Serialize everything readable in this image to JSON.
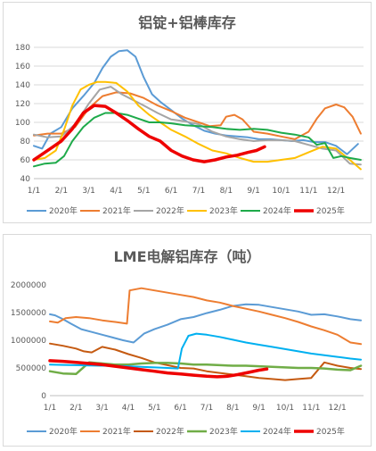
{
  "charts": [
    {
      "type": "line",
      "title": "铝锭+铝棒库存",
      "x_ticks": [
        "1/1",
        "2/1",
        "3/1",
        "4/1",
        "5/1",
        "6/1",
        "7/1",
        "8/1",
        "9/1",
        "10/1",
        "11/1",
        "12/1"
      ],
      "ylim": [
        40,
        180
      ],
      "y_ticks": [
        "40",
        "60",
        "80",
        "100",
        "120",
        "140",
        "160",
        "180"
      ],
      "grid": true,
      "legend_position": "bottom",
      "series": [
        {
          "name": "2020年",
          "color": "#5b9bd5",
          "width": 2,
          "x": [
            0,
            0.3,
            0.6,
            1,
            1.4,
            1.8,
            2.2,
            2.5,
            2.8,
            3.1,
            3.4,
            3.7,
            4,
            4.3,
            4.6,
            5,
            5.4,
            5.8,
            6.2,
            6.6,
            7,
            7.4,
            7.8,
            8.2,
            8.6,
            9,
            9.4,
            9.8,
            10.2,
            10.6,
            11,
            11.4,
            11.8
          ],
          "y": [
            75,
            72,
            88,
            95,
            115,
            128,
            142,
            158,
            170,
            176,
            177,
            170,
            148,
            130,
            122,
            113,
            104,
            97,
            91,
            88,
            86,
            85,
            84,
            82,
            82,
            81,
            80,
            81,
            79,
            79,
            75,
            66,
            77
          ]
        },
        {
          "name": "2021年",
          "color": "#ed7d31",
          "width": 2,
          "x": [
            0,
            0.5,
            1,
            1.5,
            2,
            2.5,
            3,
            3.5,
            4,
            4.5,
            5,
            5.5,
            6,
            6.4,
            6.8,
            7,
            7.3,
            7.6,
            8,
            8.5,
            9,
            9.5,
            10,
            10.3,
            10.6,
            11,
            11.3,
            11.6,
            11.9
          ],
          "y": [
            86,
            88,
            88,
            95,
            115,
            128,
            132,
            131,
            126,
            118,
            112,
            105,
            100,
            96,
            97,
            106,
            108,
            103,
            90,
            88,
            85,
            82,
            90,
            104,
            115,
            119,
            116,
            106,
            88
          ]
        },
        {
          "name": "2022年",
          "color": "#a5a5a5",
          "width": 2,
          "x": [
            0,
            0.5,
            1,
            1.5,
            2,
            2.4,
            2.8,
            3.2,
            3.6,
            4,
            4.5,
            5,
            5.5,
            6,
            6.5,
            7,
            7.5,
            8,
            8.5,
            9,
            9.5,
            10,
            10.5,
            11,
            11.5,
            11.9
          ],
          "y": [
            87,
            84,
            85,
            98,
            120,
            135,
            138,
            130,
            124,
            118,
            110,
            103,
            101,
            98,
            90,
            85,
            82,
            80,
            81,
            81,
            80,
            76,
            72,
            70,
            56,
            55
          ]
        },
        {
          "name": "2023年",
          "color": "#ffc000",
          "width": 2,
          "x": [
            0,
            0.4,
            0.8,
            1.1,
            1.4,
            1.7,
            2,
            2.3,
            2.6,
            3,
            3.4,
            3.8,
            4.2,
            4.6,
            5,
            5.5,
            6,
            6.5,
            7,
            7.5,
            8,
            8.5,
            9,
            9.5,
            10,
            10.5,
            11,
            11.5,
            11.9
          ],
          "y": [
            60,
            62,
            70,
            92,
            118,
            135,
            140,
            143,
            143,
            142,
            133,
            118,
            108,
            100,
            92,
            85,
            77,
            70,
            67,
            62,
            58,
            58,
            60,
            62,
            68,
            74,
            72,
            60,
            50
          ]
        },
        {
          "name": "2024年",
          "color": "#1eaa4a",
          "width": 2,
          "x": [
            0,
            0.4,
            0.8,
            1.1,
            1.4,
            1.8,
            2.2,
            2.6,
            3,
            3.4,
            3.8,
            4.2,
            4.6,
            5,
            5.5,
            6,
            6.5,
            7,
            7.5,
            8,
            8.5,
            9,
            9.5,
            10,
            10.3,
            10.6,
            10.9,
            11.2,
            11.5,
            11.9
          ],
          "y": [
            53,
            56,
            57,
            64,
            80,
            95,
            105,
            110,
            110,
            108,
            104,
            100,
            100,
            99,
            97,
            96,
            95,
            93,
            92,
            93,
            92,
            89,
            87,
            84,
            76,
            78,
            62,
            64,
            62,
            60
          ]
        },
        {
          "name": "2025年",
          "color": "#ee0000",
          "width": 3.5,
          "x": [
            0,
            0.3,
            0.6,
            1,
            1.4,
            1.8,
            2.2,
            2.6,
            3,
            3.4,
            3.8,
            4.2,
            4.6,
            5,
            5.4,
            5.8,
            6.2,
            6.6,
            7,
            7.4,
            7.8,
            8.1,
            8.4
          ],
          "y": [
            60,
            66,
            72,
            80,
            93,
            110,
            118,
            117,
            110,
            102,
            93,
            85,
            80,
            70,
            64,
            60,
            58,
            60,
            63,
            65,
            68,
            70,
            74
          ]
        }
      ]
    },
    {
      "type": "line",
      "title": "LME电解铝库存（吨）",
      "x_ticks": [
        "1/1",
        "2/1",
        "3/1",
        "4/1",
        "5/1",
        "6/1",
        "7/1",
        "8/1",
        "9/1",
        "10/1",
        "11/1",
        "12/1"
      ],
      "ylim": [
        0,
        2000000
      ],
      "y_ticks": [
        "0",
        "500000",
        "1000000",
        "1500000",
        "2000000"
      ],
      "grid": false,
      "legend_position": "bottom",
      "series": [
        {
          "name": "2020年",
          "color": "#5b9bd5",
          "width": 2,
          "x": [
            0,
            0.2,
            0.5,
            0.8,
            1.2,
            1.6,
            2,
            2.4,
            2.8,
            3.2,
            3.6,
            4,
            4.5,
            5,
            5.5,
            6,
            6.5,
            7,
            7.5,
            8,
            8.5,
            9,
            9.5,
            10,
            10.5,
            11,
            11.5,
            11.9
          ],
          "y": [
            1470000,
            1450000,
            1380000,
            1300000,
            1200000,
            1150000,
            1100000,
            1050000,
            1000000,
            960000,
            1120000,
            1200000,
            1280000,
            1380000,
            1420000,
            1490000,
            1550000,
            1620000,
            1650000,
            1640000,
            1600000,
            1560000,
            1520000,
            1460000,
            1470000,
            1430000,
            1380000,
            1360000
          ]
        },
        {
          "name": "2021年",
          "color": "#ed7d31",
          "width": 2,
          "x": [
            0,
            0.3,
            0.6,
            1,
            1.5,
            2,
            2.5,
            2.95,
            3.05,
            3.5,
            4,
            4.5,
            5,
            5.5,
            6,
            6.5,
            7,
            7.5,
            8,
            8.5,
            9,
            9.5,
            10,
            10.5,
            11,
            11.5,
            11.9
          ],
          "y": [
            1340000,
            1320000,
            1400000,
            1420000,
            1400000,
            1360000,
            1330000,
            1300000,
            1900000,
            1940000,
            1900000,
            1860000,
            1820000,
            1780000,
            1720000,
            1680000,
            1620000,
            1570000,
            1520000,
            1460000,
            1400000,
            1330000,
            1250000,
            1180000,
            1100000,
            960000,
            930000
          ]
        },
        {
          "name": "2022年",
          "color": "#c55a11",
          "width": 2,
          "x": [
            0,
            0.5,
            1,
            1.3,
            1.6,
            2,
            2.5,
            3,
            3.5,
            4,
            4.5,
            5,
            5.5,
            6,
            6.5,
            7,
            7.5,
            8,
            8.5,
            9,
            9.5,
            10,
            10.5,
            11,
            11.5,
            11.9
          ],
          "y": [
            940000,
            900000,
            850000,
            800000,
            780000,
            880000,
            830000,
            750000,
            680000,
            600000,
            550000,
            500000,
            490000,
            440000,
            410000,
            380000,
            350000,
            320000,
            300000,
            280000,
            300000,
            320000,
            600000,
            540000,
            500000,
            480000
          ]
        },
        {
          "name": "2023年",
          "color": "#70ad47",
          "width": 2.5,
          "x": [
            0,
            0.5,
            1,
            1.5,
            2,
            2.5,
            3,
            3.5,
            4,
            4.5,
            5,
            5.5,
            6,
            6.5,
            7,
            7.5,
            8,
            8.5,
            9,
            9.5,
            10,
            10.5,
            11,
            11.5,
            11.9
          ],
          "y": [
            440000,
            400000,
            390000,
            600000,
            580000,
            560000,
            560000,
            580000,
            590000,
            590000,
            580000,
            560000,
            560000,
            550000,
            540000,
            540000,
            530000,
            520000,
            510000,
            500000,
            500000,
            490000,
            470000,
            460000,
            540000
          ]
        },
        {
          "name": "2024年",
          "color": "#00b0f0",
          "width": 2,
          "x": [
            0,
            0.5,
            1,
            1.5,
            2,
            2.5,
            3,
            3.5,
            4,
            4.5,
            4.9,
            5.05,
            5.3,
            5.6,
            6,
            6.5,
            7,
            7.5,
            8,
            8.5,
            9,
            9.5,
            10,
            10.5,
            11,
            11.5,
            11.9
          ],
          "y": [
            560000,
            555000,
            550000,
            545000,
            540000,
            535000,
            530000,
            520000,
            510000,
            500000,
            490000,
            850000,
            1080000,
            1120000,
            1100000,
            1060000,
            1010000,
            960000,
            920000,
            880000,
            840000,
            800000,
            760000,
            730000,
            700000,
            670000,
            650000
          ]
        },
        {
          "name": "2025年",
          "color": "#ee0000",
          "width": 3.5,
          "x": [
            0,
            0.5,
            1,
            1.5,
            2,
            2.5,
            3,
            3.5,
            4,
            4.5,
            5,
            5.5,
            6,
            6.4,
            6.8,
            7.2,
            7.6,
            8,
            8.3
          ],
          "y": [
            630000,
            620000,
            600000,
            580000,
            560000,
            530000,
            500000,
            470000,
            440000,
            410000,
            390000,
            370000,
            350000,
            340000,
            350000,
            380000,
            420000,
            460000,
            480000
          ]
        }
      ]
    }
  ]
}
